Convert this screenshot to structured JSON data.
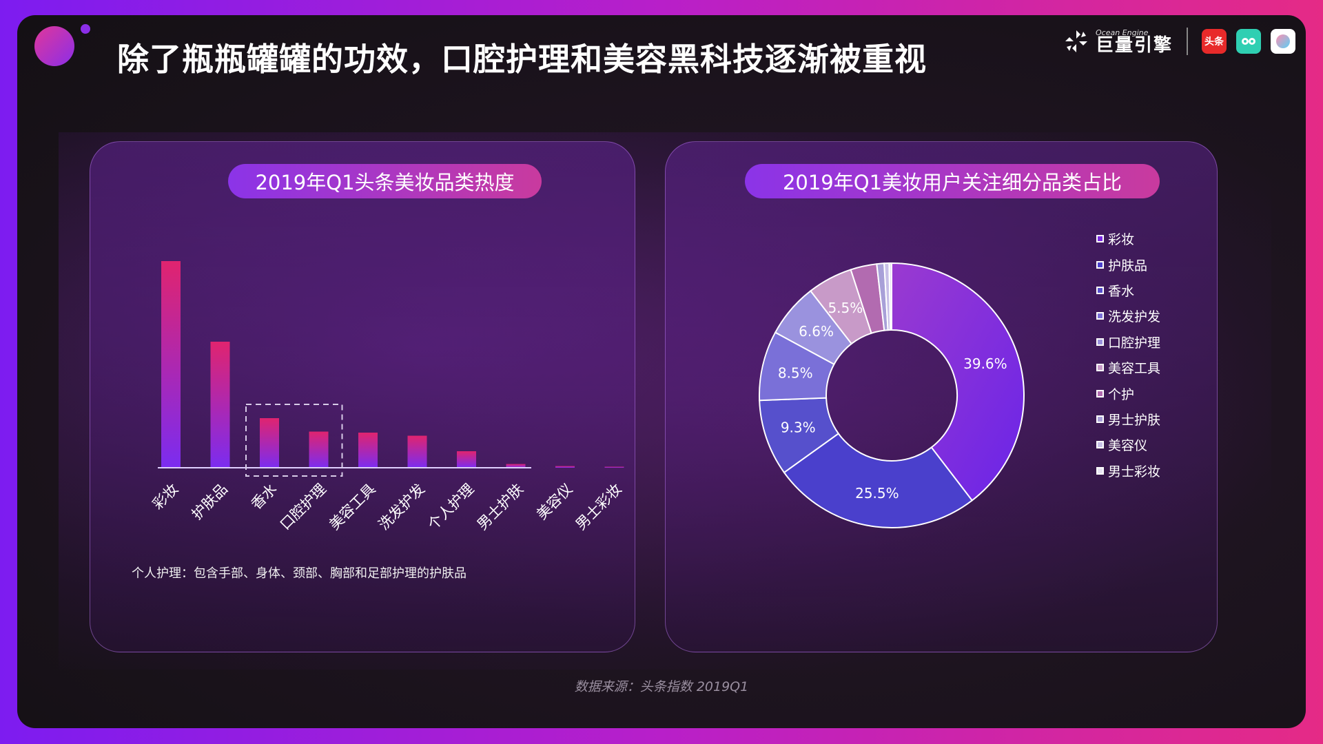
{
  "header": {
    "title": "除了瓶瓶罐罐的功效，口腔护理和美容黑科技逐渐被重视",
    "logo_small": "Ocean Engine",
    "logo_big": "巨量引擎",
    "app_toutiao": "头条"
  },
  "footer": {
    "source": "数据来源：头条指数   2019Q1"
  },
  "colors": {
    "bar_top": "#e0246f",
    "bar_bottom": "#7b2cf0",
    "accent_pink": "#c93a9e",
    "accent_purple": "#8b34e8"
  },
  "chart_data": [
    {
      "type": "bar",
      "title": "2019年Q1头条美妆品类热度",
      "categories": [
        "彩妆",
        "护肤品",
        "香水",
        "口腔护理",
        "美容工具",
        "洗发护发",
        "个人护理",
        "男士护肤",
        "美容仪",
        "男士彩妆"
      ],
      "values": [
        100,
        61,
        24,
        17.5,
        17,
        15.5,
        8,
        1.8,
        0.8,
        0.3
      ],
      "highlighted": [
        "香水",
        "口腔护理"
      ],
      "ylim": [
        0,
        100
      ],
      "grid": false,
      "note": "个人护理：包含手部、身体、颈部、胸部和足部护理的护肤品"
    },
    {
      "type": "pie",
      "title": "2019年Q1美妆用户关注细分品类占比",
      "labels": [
        "彩妆",
        "护肤品",
        "香水",
        "洗发护发",
        "口腔护理",
        "美容工具",
        "个护",
        "男士护肤",
        "美容仪",
        "男士彩妆"
      ],
      "values": [
        39.6,
        25.5,
        9.3,
        8.5,
        6.6,
        5.5,
        3.2,
        0.9,
        0.6,
        0.3
      ],
      "value_labels": [
        "39.6%",
        "25.5%",
        "9.3%",
        "8.5%",
        "6.6%",
        "5.5%",
        "",
        "",
        "",
        ""
      ],
      "colors": [
        "#7a2ae0",
        "#4a40cc",
        "#5650cc",
        "#7a70d8",
        "#9a92de",
        "#c89ac8",
        "#b26bb0",
        "#a8a0d8",
        "#c8c0e8",
        "#e8e4f4"
      ],
      "legend_position": "right"
    }
  ]
}
